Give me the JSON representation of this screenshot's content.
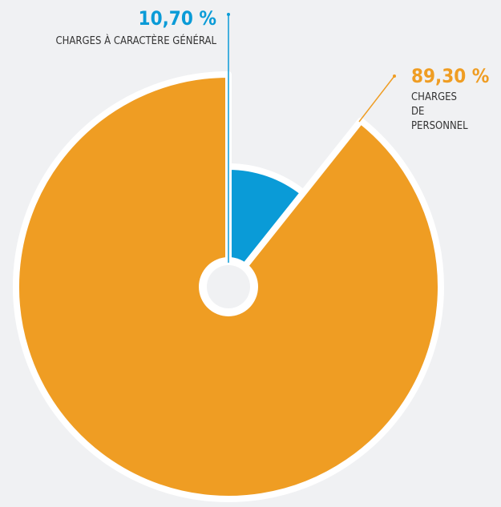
{
  "chart_data": {
    "type": "pie",
    "categories": [
      "CHARGES À CARACTÈRE GÉNÉRAL",
      "CHARGES DE PERSONNEL"
    ],
    "values": [
      10.7,
      89.3
    ],
    "value_labels": [
      "10,70 %",
      "89,30 %"
    ],
    "colors": [
      "#0a9bd7",
      "#ef9d23"
    ]
  }
}
